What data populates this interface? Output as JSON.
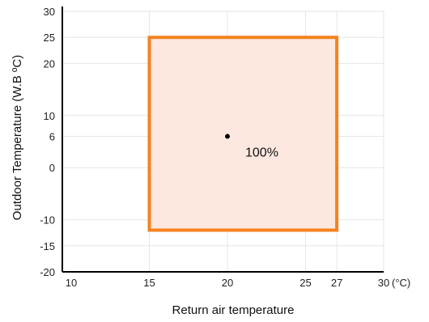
{
  "chart_data": {
    "type": "scatter",
    "title": "",
    "xlabel": "Return air temperature",
    "ylabel": "Outdoor Temperature (W.B ºC)",
    "x_unit_label": "(°C)",
    "xlim": [
      10,
      30
    ],
    "ylim": [
      -20,
      30
    ],
    "x_ticks": [
      10,
      15,
      20,
      25,
      27,
      30
    ],
    "y_ticks": [
      -20,
      -15,
      -10,
      0,
      6,
      10,
      20,
      25,
      30
    ],
    "grid": true,
    "operating_region": {
      "x_range": [
        15,
        27
      ],
      "y_range": [
        -12,
        25
      ],
      "border_color": "#F58220",
      "fill_color": "#FDE8E0"
    },
    "points": [
      {
        "x": 20,
        "y": 6,
        "label": "100%"
      }
    ]
  }
}
